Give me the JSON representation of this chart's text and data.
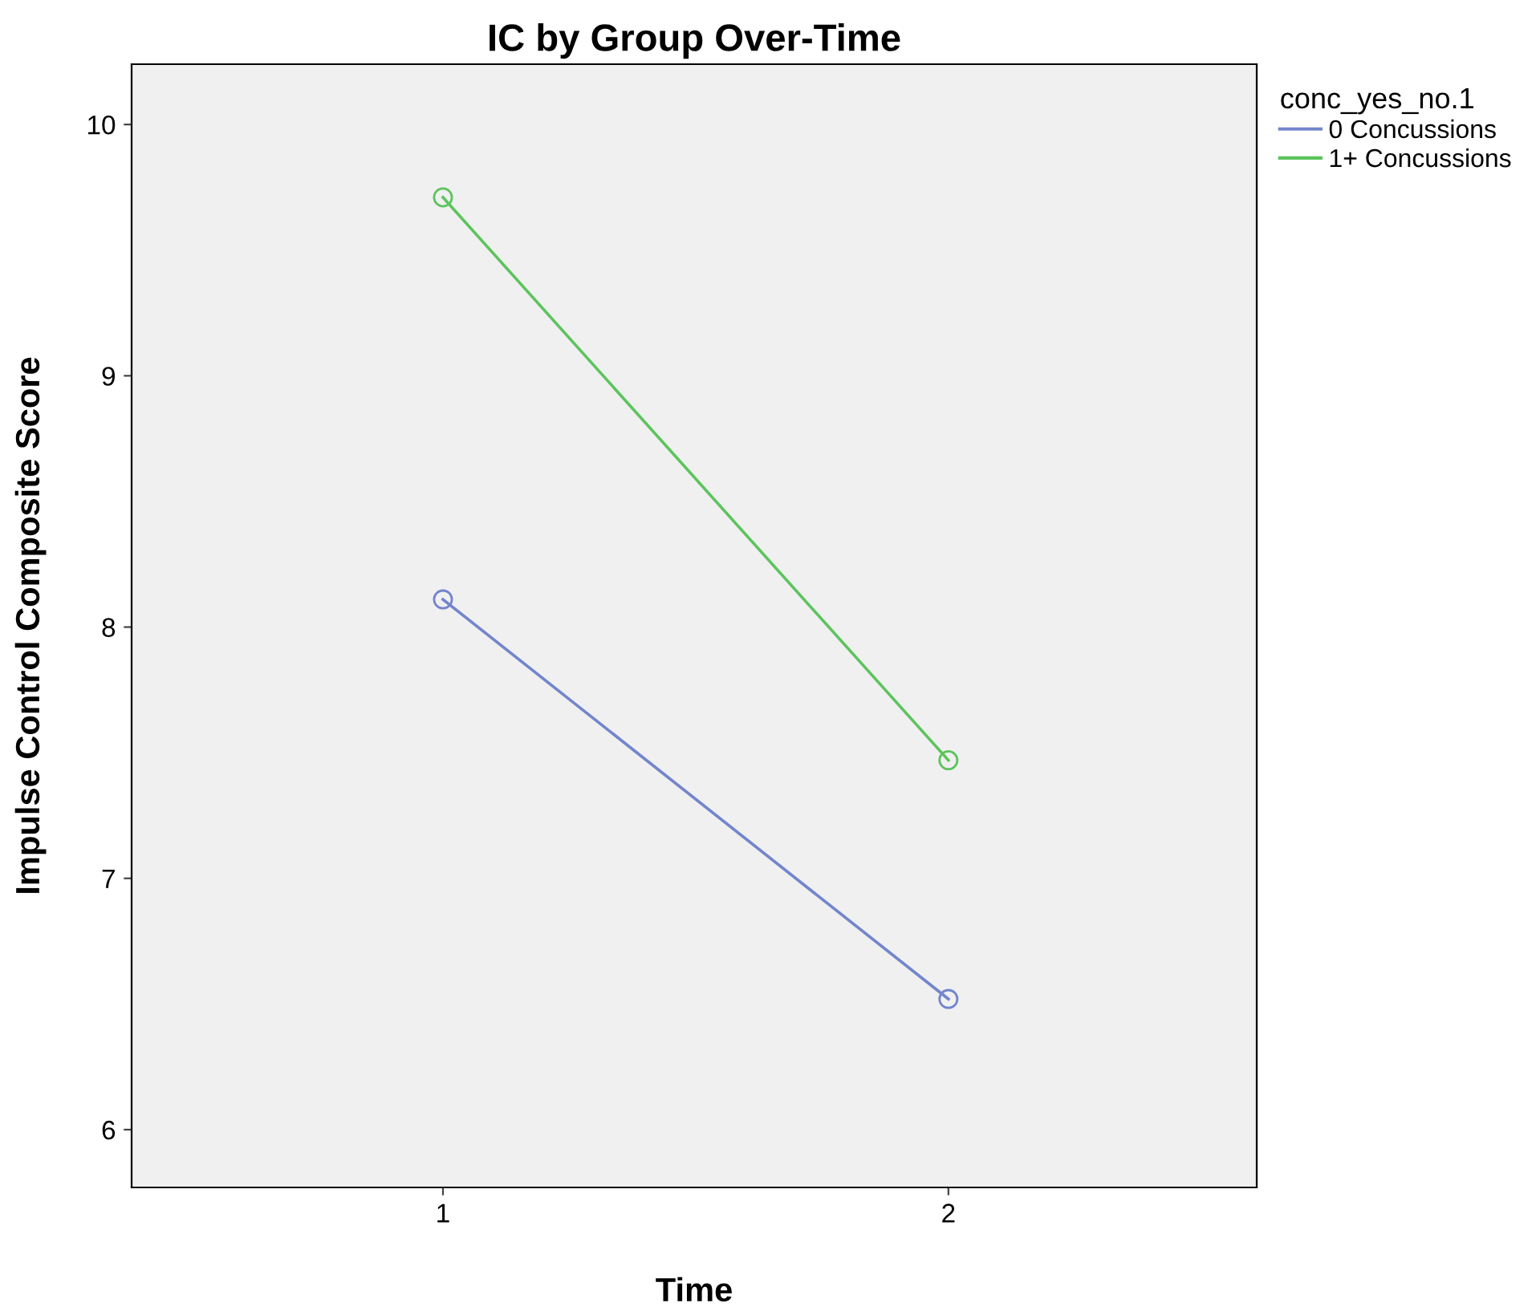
{
  "chart_data": {
    "type": "line",
    "title": "IC by Group Over-Time",
    "xlabel": "Time",
    "ylabel": "Impulse Control Composite Score",
    "legend_title": "conc_yes_no.1",
    "categories": [
      "1",
      "2"
    ],
    "series": [
      {
        "name": "0 Concussions",
        "color": "#7385cc",
        "values": [
          8.11,
          6.52
        ]
      },
      {
        "name": "1+ Concussions",
        "color": "#5cc45c",
        "values": [
          9.71,
          7.47
        ]
      }
    ],
    "ylim": [
      5.77,
      10.24
    ],
    "yticks": [
      6,
      7,
      8,
      9,
      10
    ],
    "marker": "circle",
    "grid": false,
    "legend": "right"
  }
}
